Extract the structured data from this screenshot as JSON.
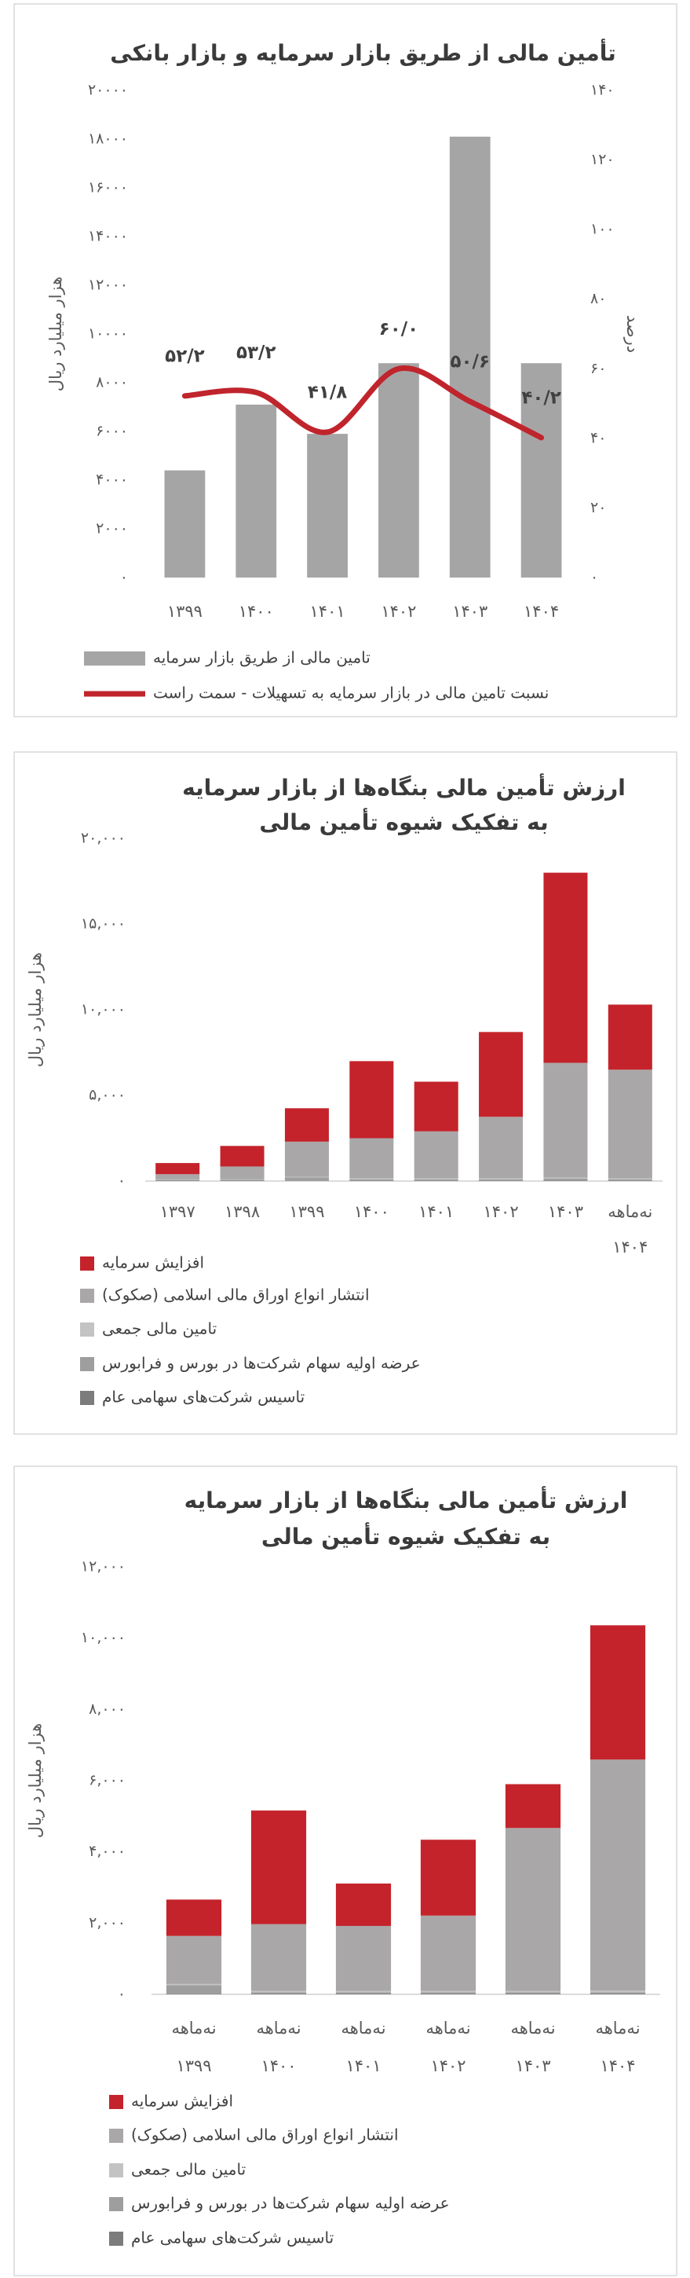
{
  "chart_data": [
    {
      "type": "combo",
      "title": "تأمین مالی از طریق بازار سرمایه و بازار بانکی",
      "y_label": "هزار میلیارد ریال",
      "y2_label": "درصد",
      "categories": [
        "۱۳۹۹",
        "۱۴۰۰",
        "۱۴۰۱",
        "۱۴۰۲",
        "۱۴۰۳",
        "۱۴۰۴"
      ],
      "series": [
        {
          "name": "تامین مالی از طریق بازار سرمایه",
          "type": "bar",
          "color": "#a6a5a6",
          "values": [
            4400,
            7100,
            5900,
            8800,
            18100,
            8800
          ]
        },
        {
          "name": "نسبت تامین مالی در بازار سرمایه به تسهیلات - سمت راست",
          "type": "line",
          "axis": "y2",
          "color": "#c0242c",
          "values": [
            52.2,
            53.2,
            41.8,
            60.0,
            50.6,
            40.2
          ],
          "value_labels": [
            "۵۲/۲",
            "۵۳/۲",
            "۴۱/۸",
            "۶۰/۰",
            "۵۰/۶",
            "۴۰/۲"
          ]
        }
      ],
      "ylim": [
        0,
        20000
      ],
      "yticks": [
        {
          "value": 0,
          "label": "۰"
        },
        {
          "value": 2000,
          "label": "۲۰۰۰"
        },
        {
          "value": 4000,
          "label": "۴۰۰۰"
        },
        {
          "value": 6000,
          "label": "۶۰۰۰"
        },
        {
          "value": 8000,
          "label": "۸۰۰۰"
        },
        {
          "value": 10000,
          "label": "۱۰۰۰۰"
        },
        {
          "value": 12000,
          "label": "۱۲۰۰۰"
        },
        {
          "value": 14000,
          "label": "۱۴۰۰۰"
        },
        {
          "value": 16000,
          "label": "۱۶۰۰۰"
        },
        {
          "value": 18000,
          "label": "۱۸۰۰۰"
        },
        {
          "value": 20000,
          "label": "۲۰۰۰۰"
        }
      ],
      "y2lim": [
        0,
        140
      ],
      "y2ticks": [
        {
          "value": 0,
          "label": "۰"
        },
        {
          "value": 20,
          "label": "۲۰"
        },
        {
          "value": 40,
          "label": "۴۰"
        },
        {
          "value": 60,
          "label": "۶۰"
        },
        {
          "value": 80,
          "label": "۸۰"
        },
        {
          "value": 100,
          "label": "۱۰۰"
        },
        {
          "value": 120,
          "label": "۱۲۰"
        },
        {
          "value": 140,
          "label": "۱۴۰"
        }
      ],
      "grid": false,
      "legend": "bottom"
    },
    {
      "type": "stacked_bar",
      "title": "ارزش تأمین مالی بنگاه‌ها از بازار سرمایه",
      "subtitle": "به تفکیک شیوه تأمین مالی",
      "y_label": "هزار میلیارد ریال",
      "categories": [
        "۱۳۹۷",
        "۱۳۹۸",
        "۱۳۹۹",
        "۱۴۰۰",
        "۱۴۰۱",
        "۱۴۰۲",
        "۱۴۰۳",
        [
          "نه‌ماهه",
          "۱۴۰۴"
        ]
      ],
      "series": [
        {
          "name": "افزایش سرمایه",
          "color": "#c4232b",
          "values": [
            650,
            1200,
            1950,
            4500,
            2900,
            4950,
            11100,
            3800
          ]
        },
        {
          "name": "انتشار انواع اوراق مالی اسلامی (صکوک)",
          "color": "#a9a7a8",
          "values": [
            300,
            750,
            2050,
            2350,
            2750,
            3600,
            6700,
            6350
          ]
        },
        {
          "name": "تامین مالی جمعی",
          "color": "#c3c3c3",
          "values": [
            20,
            30,
            40,
            50,
            50,
            50,
            60,
            60
          ]
        },
        {
          "name": "عرضه اولیه سهام شرکت‌ها در بورس و فرابورس",
          "color": "#9e9e9e",
          "values": [
            60,
            50,
            200,
            80,
            80,
            80,
            120,
            60
          ]
        },
        {
          "name": "تاسیس شرکت‌های سهامی عام",
          "color": "#7c7c7c",
          "values": [
            20,
            20,
            10,
            20,
            20,
            20,
            20,
            30
          ]
        }
      ],
      "ylim": [
        0,
        20000
      ],
      "yticks": [
        {
          "value": 0,
          "label": "۰"
        },
        {
          "value": 5000,
          "label": "۵,۰۰۰"
        },
        {
          "value": 10000,
          "label": "۱۰,۰۰۰"
        },
        {
          "value": 15000,
          "label": "۱۵,۰۰۰"
        },
        {
          "value": 20000,
          "label": "۲۰,۰۰۰"
        }
      ],
      "grid": false,
      "legend": "bottom"
    },
    {
      "type": "stacked_bar",
      "title": "ارزش تأمین مالی بنگاه‌ها از بازار سرمایه",
      "subtitle": "به تفکیک شیوه تأمین مالی",
      "y_label": "هزار میلیارد ریال",
      "categories": [
        [
          "نه‌ماهه",
          "۱۳۹۹"
        ],
        [
          "نه‌ماهه",
          "۱۴۰۰"
        ],
        [
          "نه‌ماهه",
          "۱۴۰۱"
        ],
        [
          "نه‌ماهه",
          "۱۴۰۲"
        ],
        [
          "نه‌ماهه",
          "۱۴۰۳"
        ],
        [
          "نه‌ماهه",
          "۱۴۰۴"
        ]
      ],
      "series": [
        {
          "name": "افزایش سرمایه",
          "color": "#c4232b",
          "values": [
            1020,
            3190,
            1190,
            2130,
            1230,
            3770
          ]
        },
        {
          "name": "انتشار انواع اوراق مالی اسلامی (صکوک)",
          "color": "#a9a7a8",
          "values": [
            1350,
            1870,
            1820,
            2110,
            4570,
            6480
          ]
        },
        {
          "name": "تامین مالی جمعی",
          "color": "#c3c3c3",
          "values": [
            30,
            40,
            40,
            40,
            40,
            50
          ]
        },
        {
          "name": "عرضه اولیه سهام شرکت‌ها در بورس و فرابورس",
          "color": "#9e9e9e",
          "values": [
            250,
            40,
            40,
            40,
            40,
            40
          ]
        },
        {
          "name": "تاسیس شرکت‌های سهامی عام",
          "color": "#7c7c7c",
          "values": [
            10,
            20,
            20,
            20,
            20,
            20
          ]
        }
      ],
      "ylim": [
        0,
        12000
      ],
      "yticks": [
        {
          "value": 0,
          "label": "۰"
        },
        {
          "value": 2000,
          "label": "۲,۰۰۰"
        },
        {
          "value": 4000,
          "label": "۴,۰۰۰"
        },
        {
          "value": 6000,
          "label": "۶,۰۰۰"
        },
        {
          "value": 8000,
          "label": "۸,۰۰۰"
        },
        {
          "value": 10000,
          "label": "۱۰,۰۰۰"
        },
        {
          "value": 12000,
          "label": "۱۲,۰۰۰"
        }
      ],
      "grid": false,
      "legend": "bottom"
    }
  ]
}
